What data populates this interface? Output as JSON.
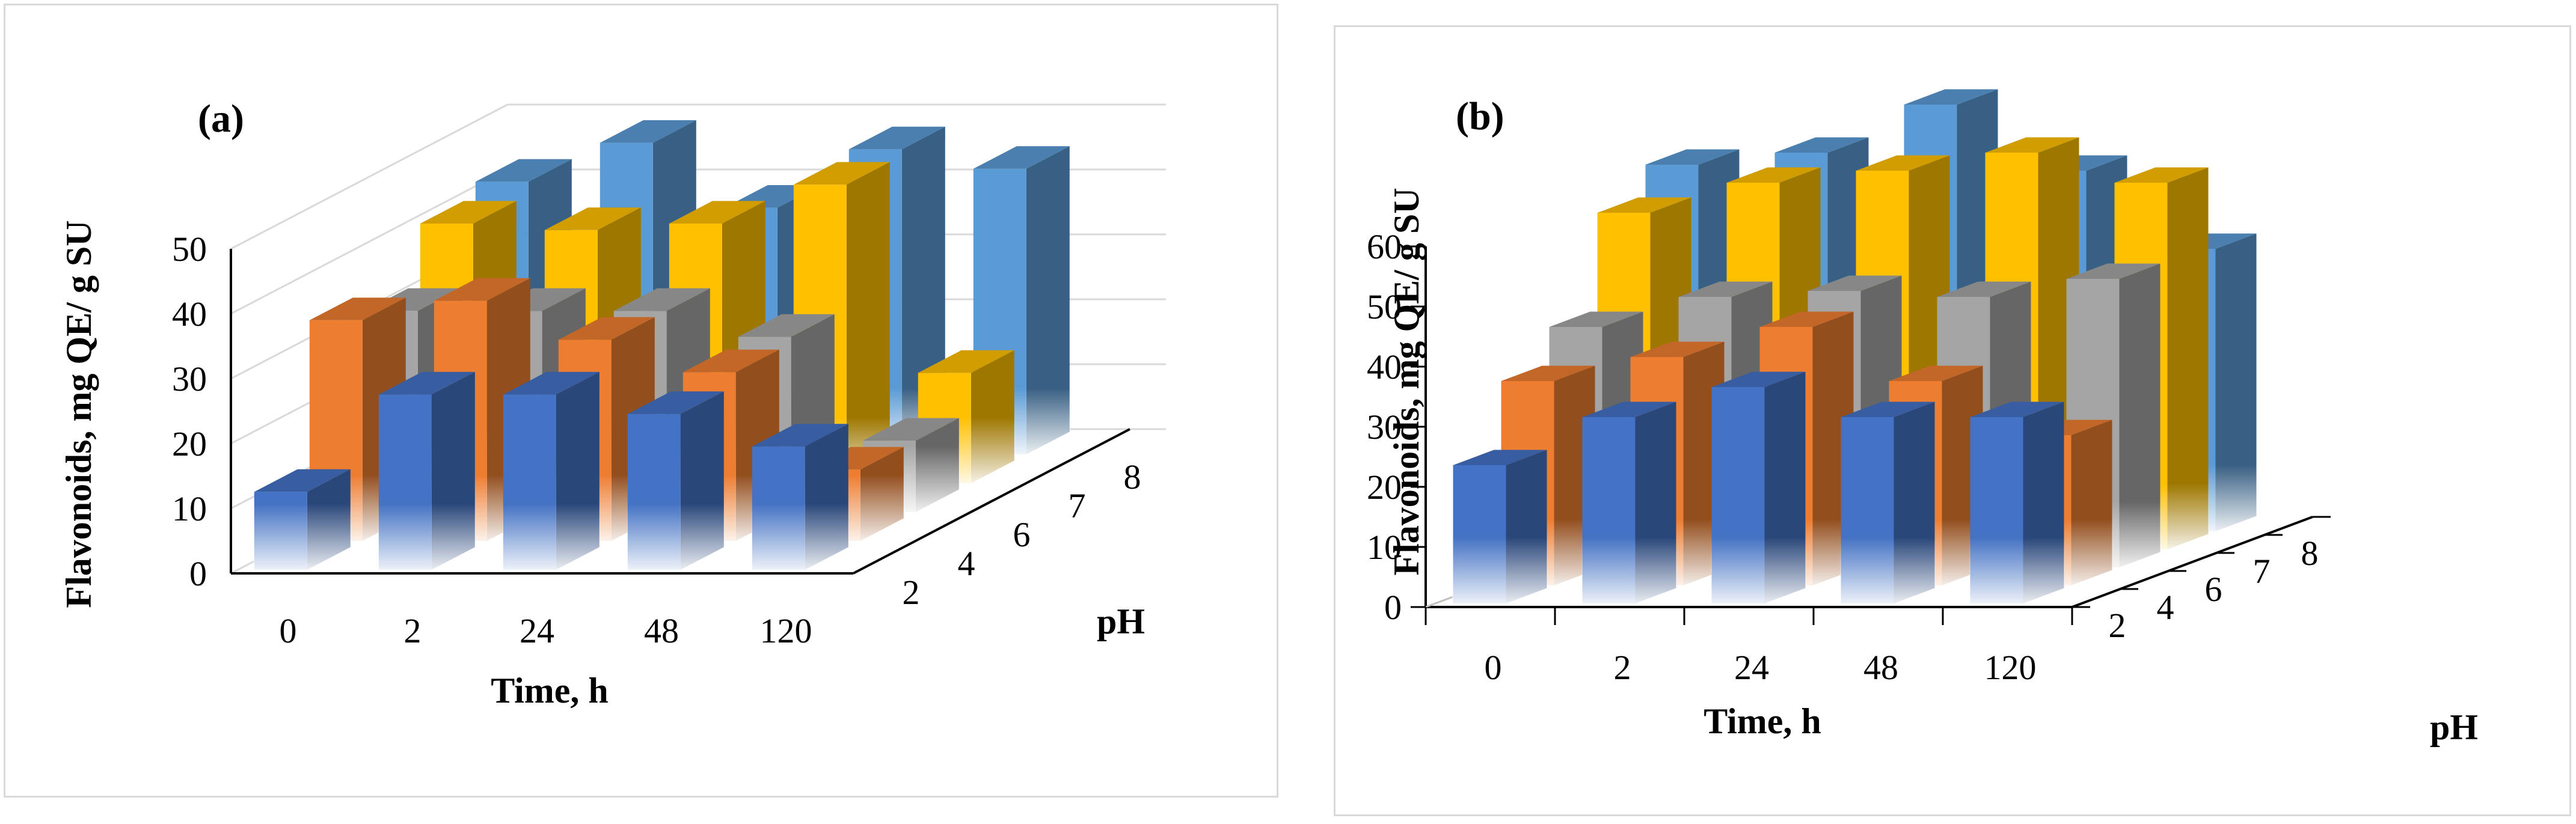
{
  "figure": {
    "colors": {
      "background": "#ffffff",
      "frame": "#d9d9d9",
      "axis": "#000000",
      "grid": "#d9d9d9"
    }
  },
  "chart_data": [
    {
      "panel_label": "(a)",
      "type": "bar3d",
      "title": "",
      "ylabel": "Flavonoids, mg QE/ g SU",
      "xlabel": "Time, h",
      "zlabel": "pH",
      "categories": [
        "0",
        "2",
        "24",
        "48",
        "120"
      ],
      "depth_categories": [
        "2",
        "4",
        "6",
        "7",
        "8"
      ],
      "yticks": [
        "0",
        "10",
        "20",
        "30",
        "40",
        "50"
      ],
      "ylim": [
        0,
        50
      ],
      "grid": true,
      "series": [
        {
          "name": "pH 2",
          "color": "#4472c4",
          "values": [
            12,
            27,
            27,
            24,
            19
          ]
        },
        {
          "name": "pH 4",
          "color": "#ed7d31",
          "values": [
            34,
            37,
            31,
            26,
            11
          ]
        },
        {
          "name": "pH 6",
          "color": "#a5a5a5",
          "values": [
            31,
            31,
            31,
            27,
            11
          ]
        },
        {
          "name": "pH 7",
          "color": "#ffc000",
          "values": [
            40,
            39,
            40,
            46,
            17
          ]
        },
        {
          "name": "pH 8",
          "color": "#5b9bd5",
          "values": [
            42,
            48,
            38,
            47,
            44
          ]
        }
      ]
    },
    {
      "panel_label": "(b)",
      "type": "bar3d",
      "title": "",
      "ylabel": "Flavonoids, mg QE/ g SU",
      "xlabel": "Time, h",
      "zlabel": "pH",
      "categories": [
        "0",
        "2",
        "24",
        "48",
        "120"
      ],
      "depth_categories": [
        "2",
        "4",
        "6",
        "7",
        "8"
      ],
      "yticks": [
        "0",
        "10",
        "20",
        "30",
        "40",
        "50",
        "60"
      ],
      "ylim": [
        0,
        60
      ],
      "grid": false,
      "series": [
        {
          "name": "pH 2",
          "color": "#4472c4",
          "values": [
            23,
            31,
            36,
            31,
            31
          ]
        },
        {
          "name": "pH 4",
          "color": "#ed7d31",
          "values": [
            34,
            38,
            43,
            34,
            25
          ]
        },
        {
          "name": "pH 6",
          "color": "#a5a5a5",
          "values": [
            40,
            45,
            46,
            45,
            48
          ]
        },
        {
          "name": "pH 7",
          "color": "#ffc000",
          "values": [
            56,
            61,
            63,
            66,
            61
          ]
        },
        {
          "name": "pH 8",
          "color": "#5b9bd5",
          "values": [
            61,
            63,
            71,
            60,
            47
          ]
        }
      ]
    }
  ]
}
